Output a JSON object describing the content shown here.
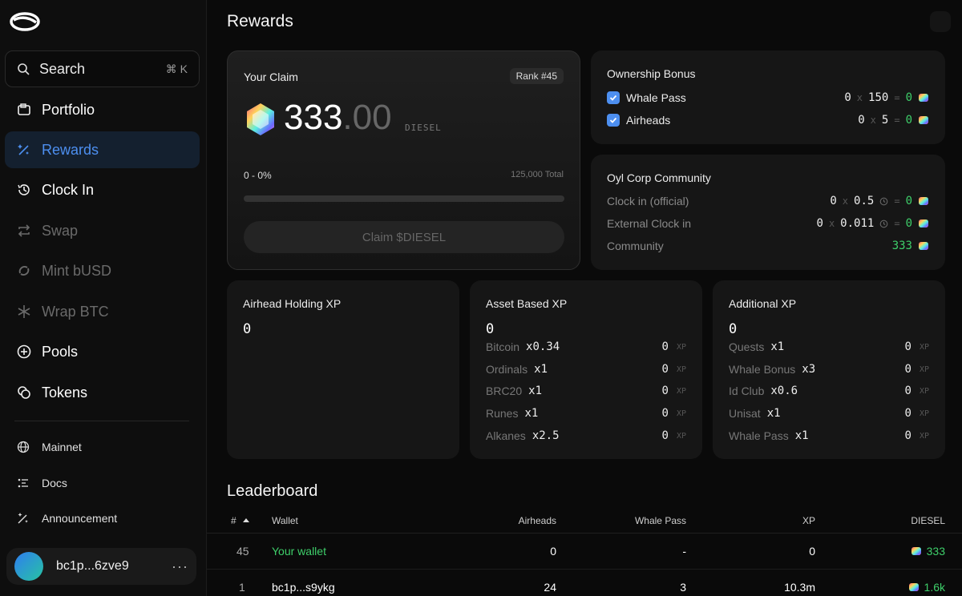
{
  "sidebar": {
    "search": {
      "label": "Search",
      "shortcut": "⌘ K"
    },
    "nav": [
      {
        "label": "Portfolio",
        "icon": "portfolio-icon"
      },
      {
        "label": "Rewards",
        "icon": "rewards-icon",
        "active": true
      },
      {
        "label": "Clock In",
        "icon": "clock-icon"
      },
      {
        "label": "Swap",
        "icon": "swap-icon",
        "disabled": true
      },
      {
        "label": "Mint bUSD",
        "icon": "mint-icon",
        "disabled": true
      },
      {
        "label": "Wrap BTC",
        "icon": "wrap-icon",
        "disabled": true
      },
      {
        "label": "Pools",
        "icon": "pools-icon"
      },
      {
        "label": "Tokens",
        "icon": "tokens-icon"
      }
    ],
    "secondary": [
      {
        "label": "Mainnet",
        "icon": "globe-icon"
      },
      {
        "label": "Docs",
        "icon": "docs-icon"
      },
      {
        "label": "Announcement",
        "icon": "announcement-icon"
      }
    ],
    "user": {
      "address": "bc1p...6zve9",
      "more": "···"
    }
  },
  "page": {
    "title": "Rewards"
  },
  "claim": {
    "title": "Your Claim",
    "rank": "Rank #45",
    "amount_int": "333",
    "amount_dec": ".00",
    "token": "DIESEL",
    "progress_label": "0 - 0%",
    "progress_fraction": 0,
    "total_label": "125,000 Total",
    "button": "Claim $DIESEL"
  },
  "ownership": {
    "title": "Ownership Bonus",
    "rows": [
      {
        "label": "Whale Pass",
        "count": "0",
        "x": "x",
        "mult": "150",
        "eq": "=",
        "result": "0"
      },
      {
        "label": "Airheads",
        "count": "0",
        "x": "x",
        "mult": "5",
        "eq": "=",
        "result": "0"
      }
    ]
  },
  "community": {
    "title": "Oyl Corp Community",
    "rows": [
      {
        "label": "Clock in (official)",
        "count": "0",
        "x": "x",
        "mult": "0.5",
        "eq": "=",
        "result": "0"
      },
      {
        "label": "External Clock in",
        "count": "0",
        "x": "x",
        "mult": "0.011",
        "eq": "=",
        "result": "0"
      }
    ],
    "community_label": "Community",
    "community_value": "333"
  },
  "xp_cards": [
    {
      "title": "Airhead Holding XP",
      "total": "0",
      "rows": []
    },
    {
      "title": "Asset Based XP",
      "total": "0",
      "rows": [
        {
          "name": "Bitcoin",
          "mult": "x0.34",
          "value": "0",
          "unit": "XP"
        },
        {
          "name": "Ordinals",
          "mult": "x1",
          "value": "0",
          "unit": "XP"
        },
        {
          "name": "BRC20",
          "mult": "x1",
          "value": "0",
          "unit": "XP"
        },
        {
          "name": "Runes",
          "mult": "x1",
          "value": "0",
          "unit": "XP"
        },
        {
          "name": "Alkanes",
          "mult": "x2.5",
          "value": "0",
          "unit": "XP"
        }
      ]
    },
    {
      "title": "Additional XP",
      "total": "0",
      "rows": [
        {
          "name": "Quests",
          "mult": "x1",
          "value": "0",
          "unit": "XP"
        },
        {
          "name": "Whale Bonus",
          "mult": "x3",
          "value": "0",
          "unit": "XP"
        },
        {
          "name": "Id Club",
          "mult": "x0.6",
          "value": "0",
          "unit": "XP"
        },
        {
          "name": "Unisat",
          "mult": "x1",
          "value": "0",
          "unit": "XP"
        },
        {
          "name": "Whale Pass",
          "mult": "x1",
          "value": "0",
          "unit": "XP"
        }
      ]
    }
  ],
  "leaderboard": {
    "title": "Leaderboard",
    "columns": {
      "rank": "#",
      "wallet": "Wallet",
      "airheads": "Airheads",
      "whale_pass": "Whale Pass",
      "xp": "XP",
      "diesel": "DIESEL"
    },
    "rows": [
      {
        "rank": "45",
        "wallet": "Your wallet",
        "airheads": "0",
        "whale_pass": "-",
        "xp": "0",
        "diesel": "333",
        "highlight": true
      },
      {
        "rank": "1",
        "wallet": "bc1p...s9ykg",
        "airheads": "24",
        "whale_pass": "3",
        "xp": "10.3m",
        "diesel": "1.6k",
        "highlight": false
      }
    ]
  }
}
